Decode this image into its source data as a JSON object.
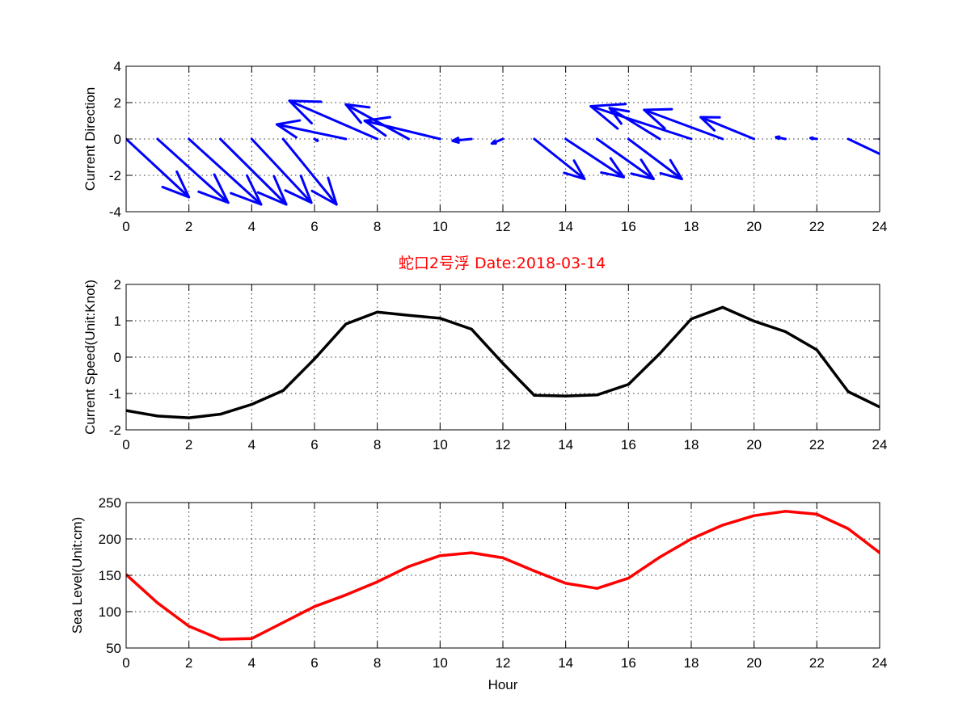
{
  "colors": {
    "quiver": "#0000ff",
    "speed": "#000000",
    "sea_level": "#ff0000",
    "title": "#ff0000"
  },
  "figure_title": "蛇口2号浮   Date:2018-03-14",
  "chart_data": [
    {
      "type": "quiver",
      "ylabel": "Current Direction",
      "xlim": [
        0,
        24
      ],
      "ylim": [
        -4,
        4
      ],
      "xticks": [
        "0",
        "2",
        "4",
        "6",
        "8",
        "10",
        "12",
        "14",
        "16",
        "18",
        "20",
        "22",
        "24"
      ],
      "yticks": [
        "-4",
        "-2",
        "0",
        "2",
        "4"
      ],
      "grid": true,
      "series": [
        {
          "x": [
            0,
            1,
            2,
            3,
            4,
            5,
            6,
            7,
            8,
            9,
            10,
            11,
            12,
            13,
            14,
            15,
            16,
            17,
            18,
            19,
            20,
            21,
            22,
            23,
            24
          ],
          "u": [
            2.0,
            2.25,
            2.3,
            2.1,
            1.9,
            1.7,
            0.1,
            -2.2,
            -2.8,
            -2.0,
            -2.4,
            -0.6,
            -0.35,
            1.6,
            1.85,
            1.8,
            1.7,
            -1.6,
            -3.2,
            -2.5,
            -1.7,
            -0.3,
            -0.2,
            2.2,
            1.6
          ],
          "v": [
            -3.2,
            -3.5,
            -3.6,
            -3.6,
            -3.5,
            -3.6,
            -0.1,
            0.8,
            2.1,
            1.9,
            1.0,
            -0.1,
            -0.25,
            -2.2,
            -2.1,
            -2.2,
            -2.2,
            1.7,
            1.8,
            1.6,
            1.2,
            0.1,
            0.05,
            -1.8,
            -1.2
          ]
        }
      ]
    },
    {
      "type": "line",
      "ylabel": "Current Speed(Unit:Knot)",
      "xlim": [
        0,
        24
      ],
      "ylim": [
        -2,
        2
      ],
      "xticks": [
        "0",
        "2",
        "4",
        "6",
        "8",
        "10",
        "12",
        "14",
        "16",
        "18",
        "20",
        "22",
        "24"
      ],
      "yticks": [
        "-2",
        "-1",
        "0",
        "1",
        "2"
      ],
      "grid": true,
      "series": [
        {
          "x": [
            0,
            1,
            2,
            3,
            4,
            5,
            6,
            7,
            8,
            9,
            10,
            11,
            12,
            13,
            14,
            15,
            16,
            17,
            18,
            19,
            20,
            21,
            22,
            23,
            24
          ],
          "values": [
            -1.47,
            -1.62,
            -1.67,
            -1.57,
            -1.3,
            -0.92,
            -0.05,
            0.91,
            1.24,
            1.15,
            1.07,
            0.77,
            -0.17,
            -1.05,
            -1.07,
            -1.04,
            -0.75,
            0.1,
            1.05,
            1.37,
            0.99,
            0.7,
            0.2,
            -0.95,
            -1.37
          ]
        }
      ]
    },
    {
      "type": "line",
      "ylabel": "Sea Level(Unit:cm)",
      "xlabel": "Hour",
      "xlim": [
        0,
        24
      ],
      "ylim": [
        50,
        250
      ],
      "xticks": [
        "0",
        "2",
        "4",
        "6",
        "8",
        "10",
        "12",
        "14",
        "16",
        "18",
        "20",
        "22",
        "24"
      ],
      "yticks": [
        "50",
        "100",
        "150",
        "200",
        "250"
      ],
      "grid": true,
      "series": [
        {
          "x": [
            0,
            1,
            2,
            3,
            4,
            5,
            6,
            7,
            8,
            9,
            10,
            11,
            12,
            13,
            14,
            15,
            16,
            17,
            18,
            19,
            20,
            21,
            22,
            23,
            24
          ],
          "values": [
            151,
            112,
            80,
            62,
            63,
            85,
            107,
            123,
            141,
            162,
            177,
            181,
            174,
            156,
            139,
            132,
            146,
            175,
            200,
            219,
            232,
            238,
            234,
            214,
            181
          ]
        }
      ]
    }
  ]
}
